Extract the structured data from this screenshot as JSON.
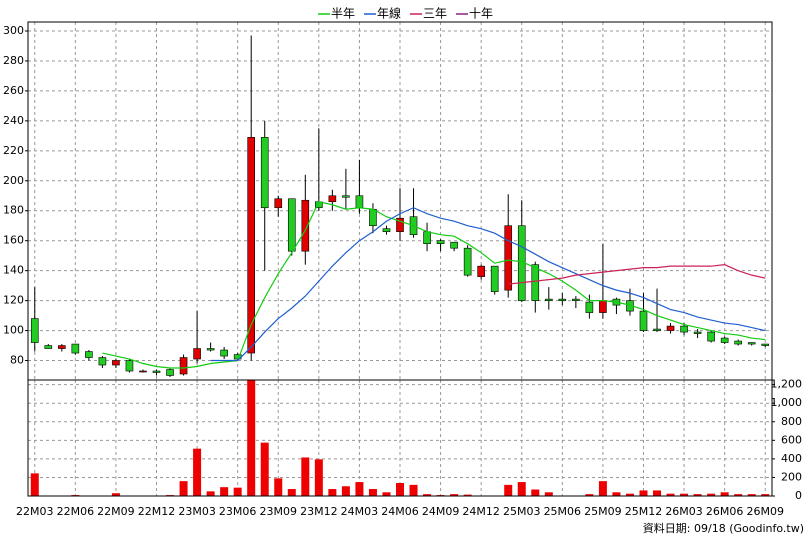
{
  "chart_data": [
    {
      "type": "candlestick",
      "categories": [
        "22M03",
        null,
        null,
        "22M06",
        null,
        null,
        "22M09",
        null,
        null,
        "22M12",
        null,
        null,
        "23M03",
        null,
        null,
        "23M06",
        null,
        null,
        "23M09",
        null,
        null,
        "23M12",
        null,
        null,
        "24M03",
        null,
        null,
        "24M06",
        null,
        null,
        "24M09",
        null,
        null,
        "24M12",
        null,
        null,
        "25M03",
        null,
        null,
        "25M06",
        null,
        null,
        "25M09",
        null,
        null,
        "25M12",
        null,
        null,
        "26M03",
        null,
        null,
        "26M06",
        null,
        null,
        "26M09"
      ],
      "open": [
        108,
        90,
        88,
        91,
        86,
        82,
        77,
        80,
        73,
        73,
        74,
        71,
        81,
        88,
        87,
        84,
        85,
        229,
        182,
        188,
        153,
        186,
        186,
        190,
        190,
        181,
        168,
        166,
        176,
        166,
        160,
        159,
        155,
        136,
        143,
        127,
        170,
        144,
        121,
        121,
        121,
        119,
        112,
        121,
        120,
        113,
        101,
        100,
        103,
        99,
        99,
        95,
        93,
        92,
        91
      ],
      "high": [
        129,
        91,
        91,
        91,
        87,
        83,
        81,
        81,
        74,
        74,
        75,
        84,
        113,
        92,
        89,
        85,
        297,
        240,
        190,
        188,
        204,
        235,
        194,
        208,
        214,
        185,
        170,
        195,
        195,
        172,
        161,
        159,
        157,
        144,
        143,
        191,
        187,
        146,
        129,
        125,
        123,
        124,
        158,
        122,
        128,
        125,
        128,
        105,
        105,
        101,
        100,
        96,
        94,
        92,
        91
      ],
      "low": [
        86,
        88,
        86,
        84,
        80,
        75,
        75,
        72,
        72,
        70,
        69,
        70,
        78,
        86,
        81,
        80,
        80,
        140,
        176,
        150,
        144,
        180,
        180,
        181,
        178,
        165,
        164,
        160,
        162,
        153,
        153,
        153,
        136,
        134,
        124,
        122,
        119,
        112,
        114,
        117,
        115,
        108,
        108,
        111,
        110,
        99,
        99,
        98,
        97,
        95,
        92,
        91,
        90,
        90,
        89
      ],
      "close": [
        92,
        88,
        90,
        85,
        82,
        77,
        80,
        73,
        73,
        72,
        70,
        82,
        88,
        87,
        83,
        81,
        229,
        182,
        188,
        153,
        187,
        182,
        190,
        189,
        182,
        170,
        166,
        175,
        164,
        158,
        158,
        155,
        137,
        143,
        126,
        170,
        120,
        120,
        120,
        120,
        120,
        112,
        120,
        117,
        113,
        100,
        100,
        103,
        99,
        98,
        93,
        92,
        91,
        91,
        90
      ],
      "up_color": "#e00000",
      "down_color": "#22cc22",
      "series": [
        {
          "name": "半年",
          "color": "#11cc11",
          "values": [
            null,
            null,
            null,
            null,
            null,
            85,
            83,
            81,
            78,
            76,
            75,
            75,
            76,
            78,
            79,
            80,
            104,
            122,
            138,
            152,
            167,
            186,
            184,
            181,
            182,
            181,
            176,
            173,
            170,
            166,
            164,
            163,
            158,
            152,
            145,
            147,
            146,
            142,
            138,
            133,
            127,
            120,
            120,
            119,
            117,
            114,
            110,
            107,
            104,
            102,
            100,
            98,
            97,
            95,
            94
          ]
        },
        {
          "name": "年線",
          "color": "#1f5fd0",
          "values": [
            null,
            null,
            null,
            null,
            null,
            null,
            null,
            null,
            null,
            null,
            null,
            null,
            null,
            80,
            80,
            80,
            89,
            99,
            108,
            115,
            123,
            133,
            143,
            152,
            160,
            166,
            173,
            178,
            182,
            178,
            175,
            173,
            170,
            168,
            165,
            160,
            156,
            151,
            146,
            142,
            138,
            134,
            130,
            127,
            125,
            122,
            118,
            114,
            112,
            109,
            107,
            105,
            104,
            102,
            100
          ]
        },
        {
          "name": "三年",
          "color": "#cc2255",
          "values": [
            null,
            null,
            null,
            null,
            null,
            null,
            null,
            null,
            null,
            null,
            null,
            null,
            null,
            null,
            null,
            null,
            null,
            null,
            null,
            null,
            null,
            null,
            null,
            null,
            null,
            null,
            null,
            null,
            null,
            null,
            null,
            null,
            null,
            null,
            null,
            131,
            132,
            133,
            134,
            135,
            137,
            138,
            139,
            140,
            141,
            142,
            142,
            143,
            143,
            143,
            143,
            144,
            140,
            137,
            135
          ]
        },
        {
          "name": "十年",
          "color": "#882288",
          "values": [
            null,
            null,
            null,
            null,
            null,
            null,
            null,
            null,
            null,
            null,
            null,
            null,
            null,
            null,
            null,
            null,
            null,
            null,
            null,
            null,
            null,
            null,
            null,
            null,
            null,
            null,
            null,
            null,
            null,
            null,
            null,
            null,
            null,
            null,
            null,
            null,
            null,
            null,
            null,
            null,
            null,
            null,
            null,
            null,
            null,
            null,
            null,
            null,
            null,
            null,
            null,
            null,
            null,
            null,
            null
          ]
        }
      ],
      "ylim": [
        67,
        306
      ],
      "yticks": [
        80,
        100,
        120,
        140,
        160,
        180,
        200,
        220,
        240,
        260,
        280,
        300
      ],
      "grid": true
    },
    {
      "type": "bar",
      "values": [
        244,
        5,
        5,
        10,
        5,
        5,
        30,
        5,
        5,
        5,
        10,
        160,
        510,
        50,
        95,
        90,
        1250,
        575,
        190,
        75,
        415,
        395,
        75,
        105,
        150,
        75,
        40,
        140,
        120,
        20,
        10,
        20,
        15,
        5,
        5,
        120,
        150,
        70,
        40,
        5,
        5,
        20,
        160,
        40,
        25,
        60,
        60,
        25,
        25,
        20,
        25,
        40,
        20,
        20,
        20
      ],
      "color": "#ee0000",
      "ylim": [
        0,
        1250
      ],
      "yticks": [
        0,
        200,
        400,
        600,
        800,
        {
          "value": 1000,
          "label": "1,000"
        },
        {
          "value": 1200,
          "label": "1,200"
        }
      ],
      "grid": true
    }
  ],
  "source": "資料日期: 09/18  (Goodinfo.tw)"
}
